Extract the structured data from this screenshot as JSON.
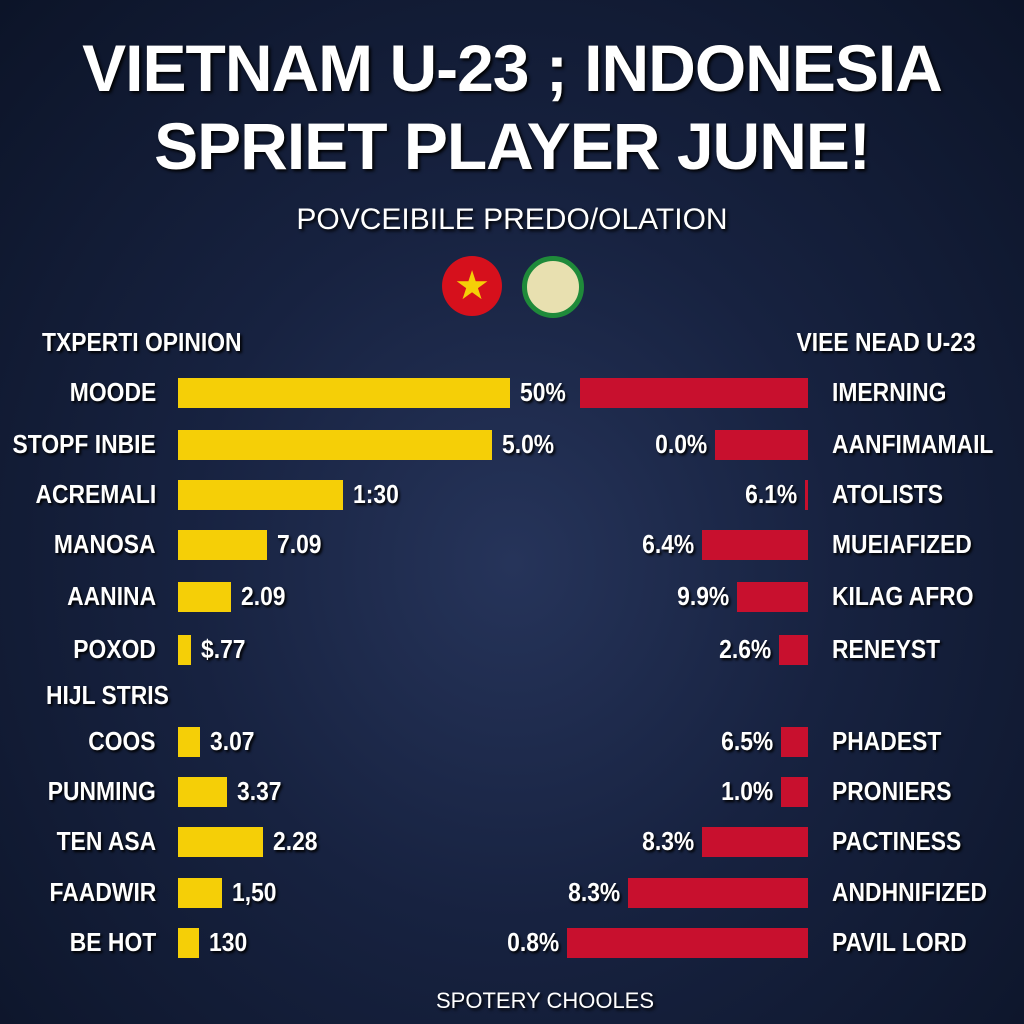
{
  "header": {
    "title_lines": [
      "VIETNAM U-23 ; INDONESIA",
      "SPRIET PLAYER JUNE!"
    ],
    "subtitle": "POVCEIBILE PREDO/OLATION"
  },
  "left_heading": "TXPERTI OPINION",
  "right_heading": "VIEE NEAD U-23",
  "section_heading": "HIJL STRIS",
  "rows": [
    {
      "left_label": "MOODE",
      "left_value": "50%",
      "right_label": "IMERNING"
    },
    {
      "left_label": "STOPF INBIE",
      "left_value": "5.0%",
      "right_value": "0.0%",
      "right_label": "AANFIMAMAIL"
    },
    {
      "left_label": "ACREMALI",
      "left_value": "1:30",
      "right_value": "6.1%",
      "right_label": "ATOLISTS"
    },
    {
      "left_label": "MANOSA",
      "left_value": "7.09",
      "right_value": "6.4%",
      "right_label": "MUEIAFIZED"
    },
    {
      "left_label": "AANINA",
      "left_value": "2.09",
      "right_value": "9.9%",
      "right_label": "KILAG AFRO"
    },
    {
      "left_label": "POXOD",
      "left_value": "$.77",
      "right_value": "2.6%",
      "right_label": "RENEYST"
    },
    {
      "left_label": "COOS",
      "left_value": "3.07",
      "right_value": "6.5%",
      "right_label": "PHADEST"
    },
    {
      "left_label": "PUNMING",
      "left_value": "3.37",
      "right_value": "1.0%",
      "right_label": "PRONIERS"
    },
    {
      "left_label": "TEN ASA",
      "left_value": "2.28",
      "right_value": "8.3%",
      "right_label": "PACTINESS"
    },
    {
      "left_label": "FAADWIR",
      "left_value": "1,50",
      "right_value": "8.3%",
      "right_label": "ANDHNIFIZED"
    },
    {
      "left_label": "BE HOT",
      "left_value": "130",
      "right_value": "0.8%",
      "right_label": "PAVIL LORD"
    }
  ],
  "footer": "SPOTERY CHOOLES"
}
